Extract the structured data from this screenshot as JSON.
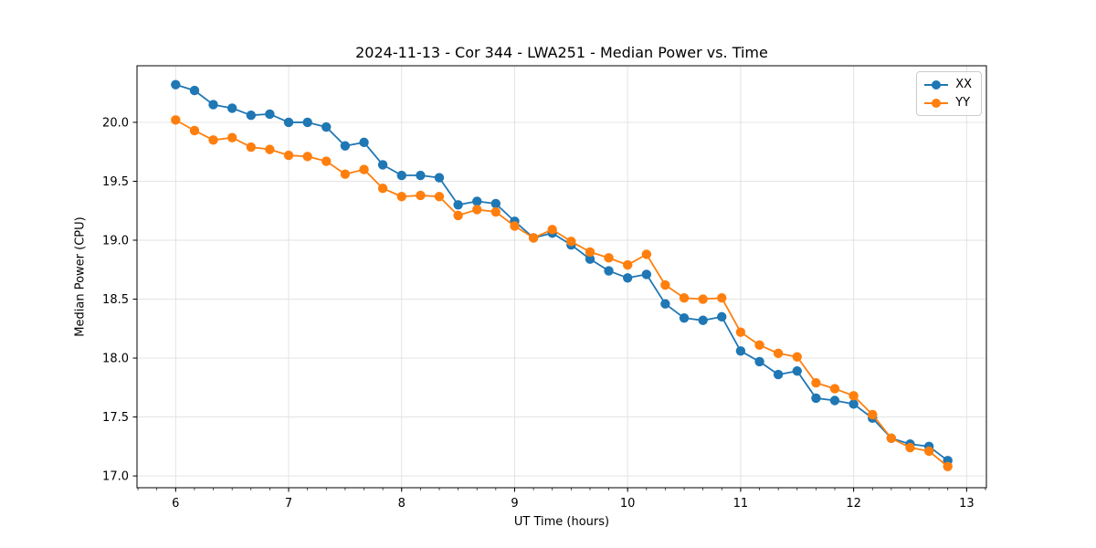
{
  "title": "2024-11-13 - Cor 344 - LWA251 - Median Power vs. Time",
  "legend": {
    "entries": [
      {
        "label": "XX",
        "color": "#1f77b4"
      },
      {
        "label": "YY",
        "color": "#ff7f0e"
      }
    ]
  },
  "colors": {
    "series_xx": "#1f77b4",
    "series_yy": "#ff7f0e",
    "grid": "#e0e0e0",
    "spine": "#000000",
    "background": "#ffffff"
  },
  "chart_data": {
    "type": "line",
    "title": "2024-11-13 - Cor 344 - LWA251 - Median Power vs. Time",
    "xlabel": "UT Time (hours)",
    "ylabel": "Median Power (CPU)",
    "xlim": [
      5.658,
      13.175
    ],
    "ylim": [
      16.9,
      20.48
    ],
    "xticks": [
      6,
      7,
      8,
      9,
      10,
      11,
      12,
      13
    ],
    "xtick_labels": [
      "6",
      "7",
      "8",
      "9",
      "10",
      "11",
      "12",
      "13"
    ],
    "yticks": [
      17.0,
      17.5,
      18.0,
      18.5,
      19.0,
      19.5,
      20.0
    ],
    "ytick_labels": [
      "17.0",
      "17.5",
      "18.0",
      "18.5",
      "19.0",
      "19.5",
      "20.0"
    ],
    "x_minor_step": 0.166667,
    "grid": true,
    "legend_position": "upper right",
    "marker": "o",
    "x": [
      6.0,
      6.167,
      6.333,
      6.5,
      6.667,
      6.833,
      7.0,
      7.167,
      7.333,
      7.5,
      7.667,
      7.833,
      8.0,
      8.167,
      8.333,
      8.5,
      8.667,
      8.833,
      9.0,
      9.167,
      9.333,
      9.5,
      9.667,
      9.833,
      10.0,
      10.167,
      10.333,
      10.5,
      10.667,
      10.833,
      11.0,
      11.167,
      11.333,
      11.5,
      11.667,
      11.833,
      12.0,
      12.167,
      12.333,
      12.5,
      12.667,
      12.833
    ],
    "series": [
      {
        "name": "XX",
        "color": "#1f77b4",
        "values": [
          20.32,
          20.27,
          20.15,
          20.12,
          20.06,
          20.07,
          20.0,
          20.0,
          19.96,
          19.8,
          19.83,
          19.64,
          19.55,
          19.55,
          19.53,
          19.3,
          19.33,
          19.31,
          19.16,
          19.02,
          19.06,
          18.96,
          18.84,
          18.74,
          18.68,
          18.71,
          18.46,
          18.34,
          18.32,
          18.35,
          18.06,
          17.97,
          17.86,
          17.89,
          17.66,
          17.64,
          17.61,
          17.49,
          17.32,
          17.27,
          17.25,
          17.13
        ]
      },
      {
        "name": "YY",
        "color": "#ff7f0e",
        "values": [
          20.02,
          19.93,
          19.85,
          19.87,
          19.79,
          19.77,
          19.72,
          19.71,
          19.67,
          19.56,
          19.6,
          19.44,
          19.37,
          19.38,
          19.37,
          19.21,
          19.26,
          19.24,
          19.12,
          19.02,
          19.09,
          18.99,
          18.9,
          18.85,
          18.79,
          18.88,
          18.62,
          18.51,
          18.5,
          18.51,
          18.22,
          18.11,
          18.04,
          18.01,
          17.79,
          17.74,
          17.68,
          17.52,
          17.32,
          17.24,
          17.21,
          17.08
        ]
      }
    ]
  }
}
